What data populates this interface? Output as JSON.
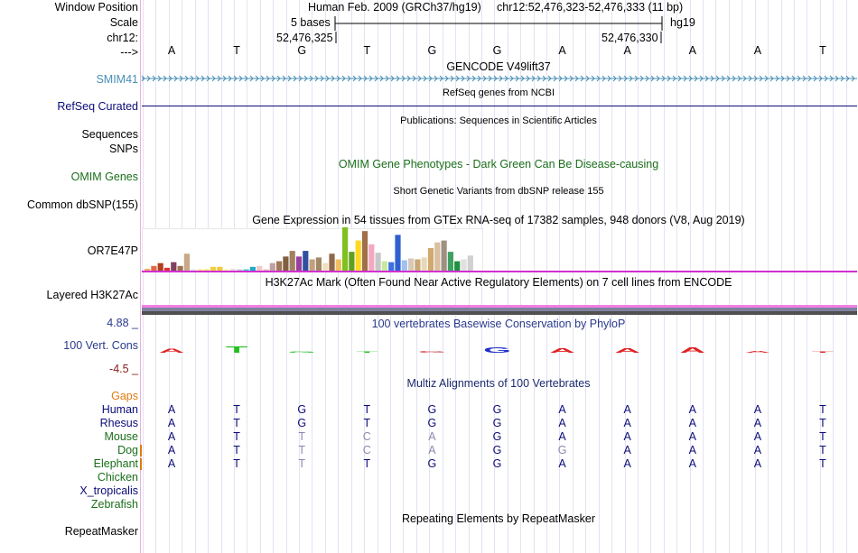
{
  "header": {
    "window_position_label": "Window Position",
    "scale_label": "Scale",
    "chrom_label": "chr12:",
    "arrow_label": "--->",
    "assembly_text": "Human Feb. 2009 (GRCh37/hg19)",
    "window_text": "chr12:52,476,323-52,476,333 (11 bp)",
    "scale_text": "5 bases",
    "db_text": "hg19",
    "coord_left": "52,476,325",
    "coord_right": "52,476,330"
  },
  "reference_bases": [
    "A",
    "T",
    "G",
    "T",
    "G",
    "G",
    "A",
    "A",
    "A",
    "A",
    "T"
  ],
  "tracks": {
    "smim41": {
      "label": "SMIM41",
      "title": "GENCODE V49lift37",
      "color": "#4a8fb5"
    },
    "refseq": {
      "label": "RefSeq Curated",
      "title": "RefSeq genes from NCBI",
      "color": "#0c0c78"
    },
    "sequences": {
      "label": "Sequences",
      "title": "Publications: Sequences in Scientific Articles"
    },
    "snps": {
      "label": "SNPs"
    },
    "omim": {
      "label": "OMIM Genes",
      "title": "OMIM Gene Phenotypes - Dark Green Can Be Disease-causing",
      "color": "#1a6e1a"
    },
    "dbsnp": {
      "label": "Common dbSNP(155)",
      "title": "Short Genetic Variants from dbSNP release 155"
    },
    "gtex": {
      "label": "OR7E47P",
      "title": "Gene Expression in 54 tissues from GTEx RNA-seq of 17382 samples, 948 donors (V8, Aug 2019)"
    },
    "h3k27ac": {
      "label": "Layered H3K27Ac",
      "title": "H3K27Ac Mark (Often Found Near Active Regulatory Elements) on 7 cell lines from ENCODE"
    },
    "cons": {
      "label": "100 Vert. Cons",
      "title": "100 vertebrates Basewise Conservation by PhyloP",
      "max_label": "4.88 _",
      "min_label": "-4.5 _",
      "color": "#2a3a8c"
    },
    "multiz": {
      "title": "Multiz Alignments of 100 Vertebrates",
      "gaps_label": "Gaps",
      "color": "#1c2a6e"
    },
    "repeat": {
      "label": "RepeatMasker",
      "title": "Repeating Elements by RepeatMasker"
    }
  },
  "species": [
    {
      "name": "Human",
      "color": "#0c0c78",
      "bases": [
        "A",
        "T",
        "G",
        "T",
        "G",
        "G",
        "A",
        "A",
        "A",
        "A",
        "T"
      ],
      "dim": []
    },
    {
      "name": "Rhesus",
      "color": "#0c0c78",
      "bases": [
        "A",
        "T",
        "G",
        "T",
        "G",
        "G",
        "A",
        "A",
        "A",
        "A",
        "T"
      ],
      "dim": []
    },
    {
      "name": "Mouse",
      "color": "#1a6e1a",
      "bases": [
        "A",
        "T",
        "T",
        "C",
        "A",
        "G",
        "A",
        "A",
        "A",
        "A",
        "T"
      ],
      "dim": [
        2,
        3,
        4
      ]
    },
    {
      "name": "Dog",
      "color": "#1a6e1a",
      "bases": [
        "A",
        "T",
        "T",
        "C",
        "A",
        "G",
        "G",
        "A",
        "A",
        "A",
        "T"
      ],
      "dim": [
        2,
        3,
        4,
        6
      ]
    },
    {
      "name": "Elephant",
      "color": "#1a6e1a",
      "bases": [
        "A",
        "T",
        "T",
        "T",
        "G",
        "G",
        "A",
        "A",
        "A",
        "A",
        "T"
      ],
      "dim": [
        2
      ]
    },
    {
      "name": "Chicken",
      "color": "#1a6e1a",
      "bases": [],
      "dim": []
    },
    {
      "name": "X_tropicalis",
      "color": "#0c0c78",
      "bases": [],
      "dim": []
    },
    {
      "name": "Zebrafish",
      "color": "#1a6e1a",
      "bases": [],
      "dim": []
    }
  ],
  "gtex_values": [
    2,
    5,
    8,
    3,
    9,
    5,
    18,
    1,
    1,
    1,
    4,
    4,
    1,
    2,
    1,
    1,
    4,
    5,
    1,
    8,
    10,
    15,
    21,
    15,
    21,
    12,
    14,
    8,
    18,
    12,
    46,
    20,
    32,
    42,
    28,
    19,
    10,
    9,
    38,
    11,
    13,
    12,
    14,
    24,
    30,
    32,
    20,
    10,
    12,
    16
  ],
  "gtex_colors": [
    "#f0a868",
    "#e06848",
    "#b04020",
    "#e03030",
    "#804060",
    "#a07050",
    "#c8a888",
    "#e0e0e0",
    "#ffd880",
    "#f0e060",
    "#f0d040",
    "#f0c840",
    "#f8f0a0",
    "#f0d8e0",
    "#c8c8c8",
    "#40c8e0",
    "#20a8c8",
    "#f0c8c8",
    "#e8b8b8",
    "#c0a0a0",
    "#a07858",
    "#806040",
    "#a08060",
    "#9840a0",
    "#3050a0",
    "#c0a080",
    "#a08868",
    "#f0e0c0",
    "#906848",
    "#f0c060",
    "#80c020",
    "#60a020",
    "#ffd820",
    "#a07048",
    "#f4a8c0",
    "#c8c8c8",
    "#c8e8a0",
    "#4070e0",
    "#3060d0",
    "#a0c0f0",
    "#d8c8b8",
    "#c8a878",
    "#e8d8b8",
    "#d0a870",
    "#d8c0a0",
    "#a09080",
    "#40a060",
    "#209040",
    "#e0e0e0",
    "#d0d0d0"
  ],
  "cons_bars": [
    2.2,
    3.2,
    0.6,
    0.5,
    -1.0,
    2.6,
    2.4,
    2.5,
    2.8,
    1.0,
    0.4
  ],
  "cons_colors": [
    "#e02020",
    "#20c020",
    "#20c020",
    "#20c020",
    "#d05050",
    "#2030c8",
    "#e02020",
    "#e02020",
    "#e02020",
    "#e02020",
    "#e02020"
  ]
}
